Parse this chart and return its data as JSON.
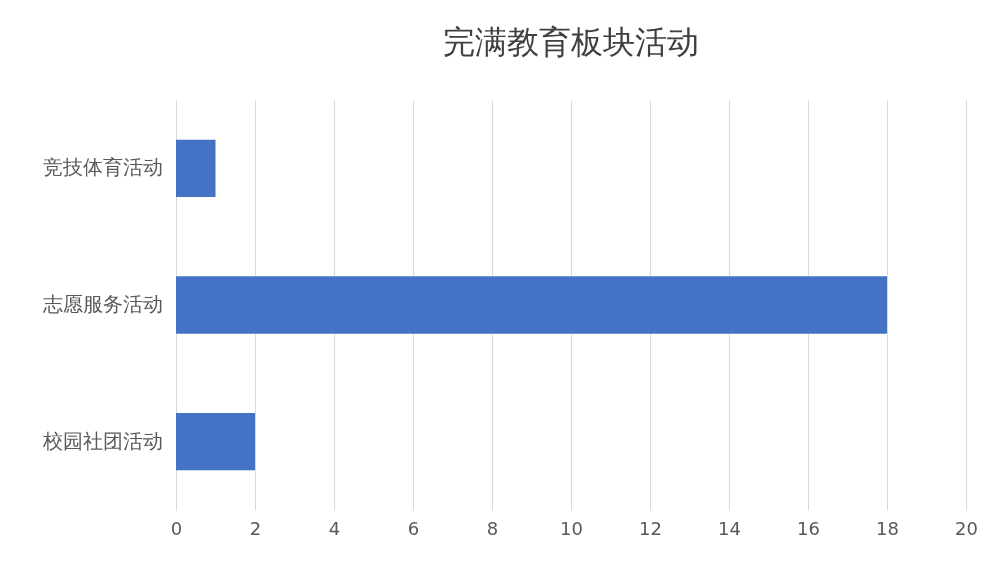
{
  "chart_data": {
    "type": "bar",
    "orientation": "horizontal",
    "title": "完满教育板块活动",
    "categories": [
      "竞技体育活动",
      "志愿服务活动",
      "校园社团活动"
    ],
    "values": [
      1,
      18,
      2
    ],
    "color": "#4472c4",
    "xlim": [
      0,
      20
    ],
    "xticks": [
      0,
      2,
      4,
      6,
      8,
      10,
      12,
      14,
      16,
      18,
      20
    ],
    "grid": "x"
  }
}
